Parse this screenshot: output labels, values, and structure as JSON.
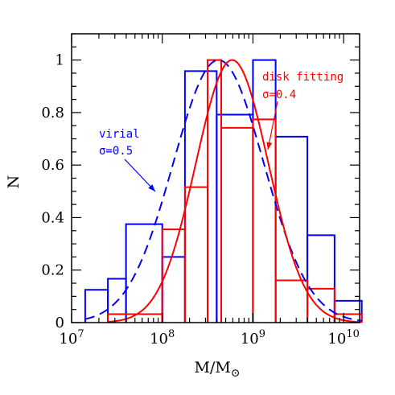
{
  "chart_data": {
    "type": "histogram",
    "xlabel": "M/M",
    "xlabel_subscript": "⊙",
    "ylabel": "N",
    "xscale": "log",
    "xlim": [
      10000000,
      15000000000
    ],
    "ylim": [
      0,
      1.1
    ],
    "x_tick_labels": [
      {
        "value": 10000000,
        "base": "10",
        "exp": "7"
      },
      {
        "value": 100000000,
        "base": "10",
        "exp": "8"
      },
      {
        "value": 1000000000,
        "base": "10",
        "exp": "9"
      },
      {
        "value": 10000000000,
        "base": "10",
        "exp": "10"
      }
    ],
    "y_ticks": [
      0,
      0.2,
      0.4,
      0.6,
      0.8,
      1
    ],
    "y_tick_labels": [
      "0",
      "0.2",
      "0.4",
      "0.6",
      "0.8",
      "1"
    ],
    "grid": false,
    "series": [
      {
        "name": "virial",
        "color": "#0000ff",
        "style": "step",
        "bin_edges_log10": [
          7.15,
          7.4,
          7.6,
          8.0,
          8.25,
          8.6,
          9.0,
          9.25,
          9.6,
          9.9,
          10.2
        ],
        "values": [
          0.125,
          0.167,
          0.375,
          0.25,
          0.958,
          0.792,
          1.0,
          0.708,
          0.333,
          0.083
        ]
      },
      {
        "name": "disk fitting",
        "color": "#ff0000",
        "style": "step",
        "bin_edges_log10": [
          7.4,
          8.0,
          8.25,
          8.5,
          8.65,
          9.0,
          9.25,
          9.6,
          9.9,
          10.2
        ],
        "values": [
          0.032,
          0.355,
          0.516,
          1.0,
          0.742,
          0.774,
          0.161,
          0.129,
          0.032
        ]
      },
      {
        "name": "virial fit",
        "label": "σ=0.5",
        "color": "#0000ff",
        "style": "dashed",
        "function": "gaussian_log10",
        "mu_log10": 8.62,
        "sigma": 0.5,
        "amplitude": 1.0,
        "x_range_log10": [
          7.15,
          10.2
        ]
      },
      {
        "name": "disk fitting fit",
        "label": "σ=0.4",
        "color": "#ff0000",
        "style": "solid",
        "function": "gaussian_log10",
        "mu_log10": 8.77,
        "sigma": 0.4,
        "amplitude": 1.0,
        "x_range_log10": [
          7.4,
          10.2
        ]
      }
    ],
    "annotations": [
      {
        "name": "virial",
        "lines": [
          "virial",
          "σ=0.5"
        ],
        "color": "#0000ff"
      },
      {
        "name": "disk fitting",
        "lines": [
          "disk fitting",
          "σ=0.4"
        ],
        "color": "#ff0000"
      }
    ]
  }
}
